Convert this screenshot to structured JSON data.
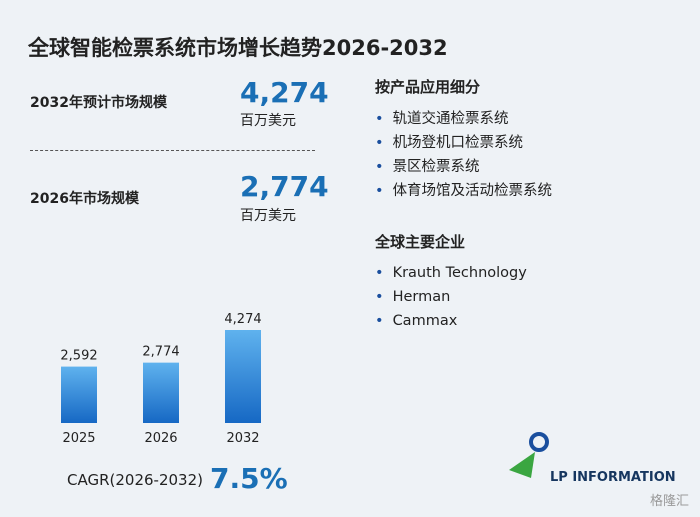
{
  "title": "全球智能检票系统市场增长趋势2026-2032",
  "stats": [
    {
      "label": "2032年预计市场规模",
      "value": "4,274",
      "unit": "百万美元"
    },
    {
      "label": "2026年市场规模",
      "value": "2,774",
      "unit": "百万美元"
    }
  ],
  "segments": {
    "heading": "按产品应用细分",
    "items": [
      "轨道交通检票系统",
      "机场登机口检票系统",
      "景区检票系统",
      "体育场馆及活动检票系统"
    ]
  },
  "companies": {
    "heading": "全球主要企业",
    "items": [
      "Krauth Technology",
      "Herman",
      "Cammax"
    ]
  },
  "cagr": {
    "label": "CAGR(2026-2032)",
    "value": "7.5%"
  },
  "logo": "LP INFORMATION",
  "watermark": "格隆汇",
  "chart_data": {
    "type": "bar",
    "categories": [
      "2025",
      "2026",
      "2032"
    ],
    "values": [
      2592,
      2774,
      4274
    ],
    "value_labels": [
      "2,592",
      "2,774",
      "4,274"
    ],
    "color": "#2a84d6"
  }
}
